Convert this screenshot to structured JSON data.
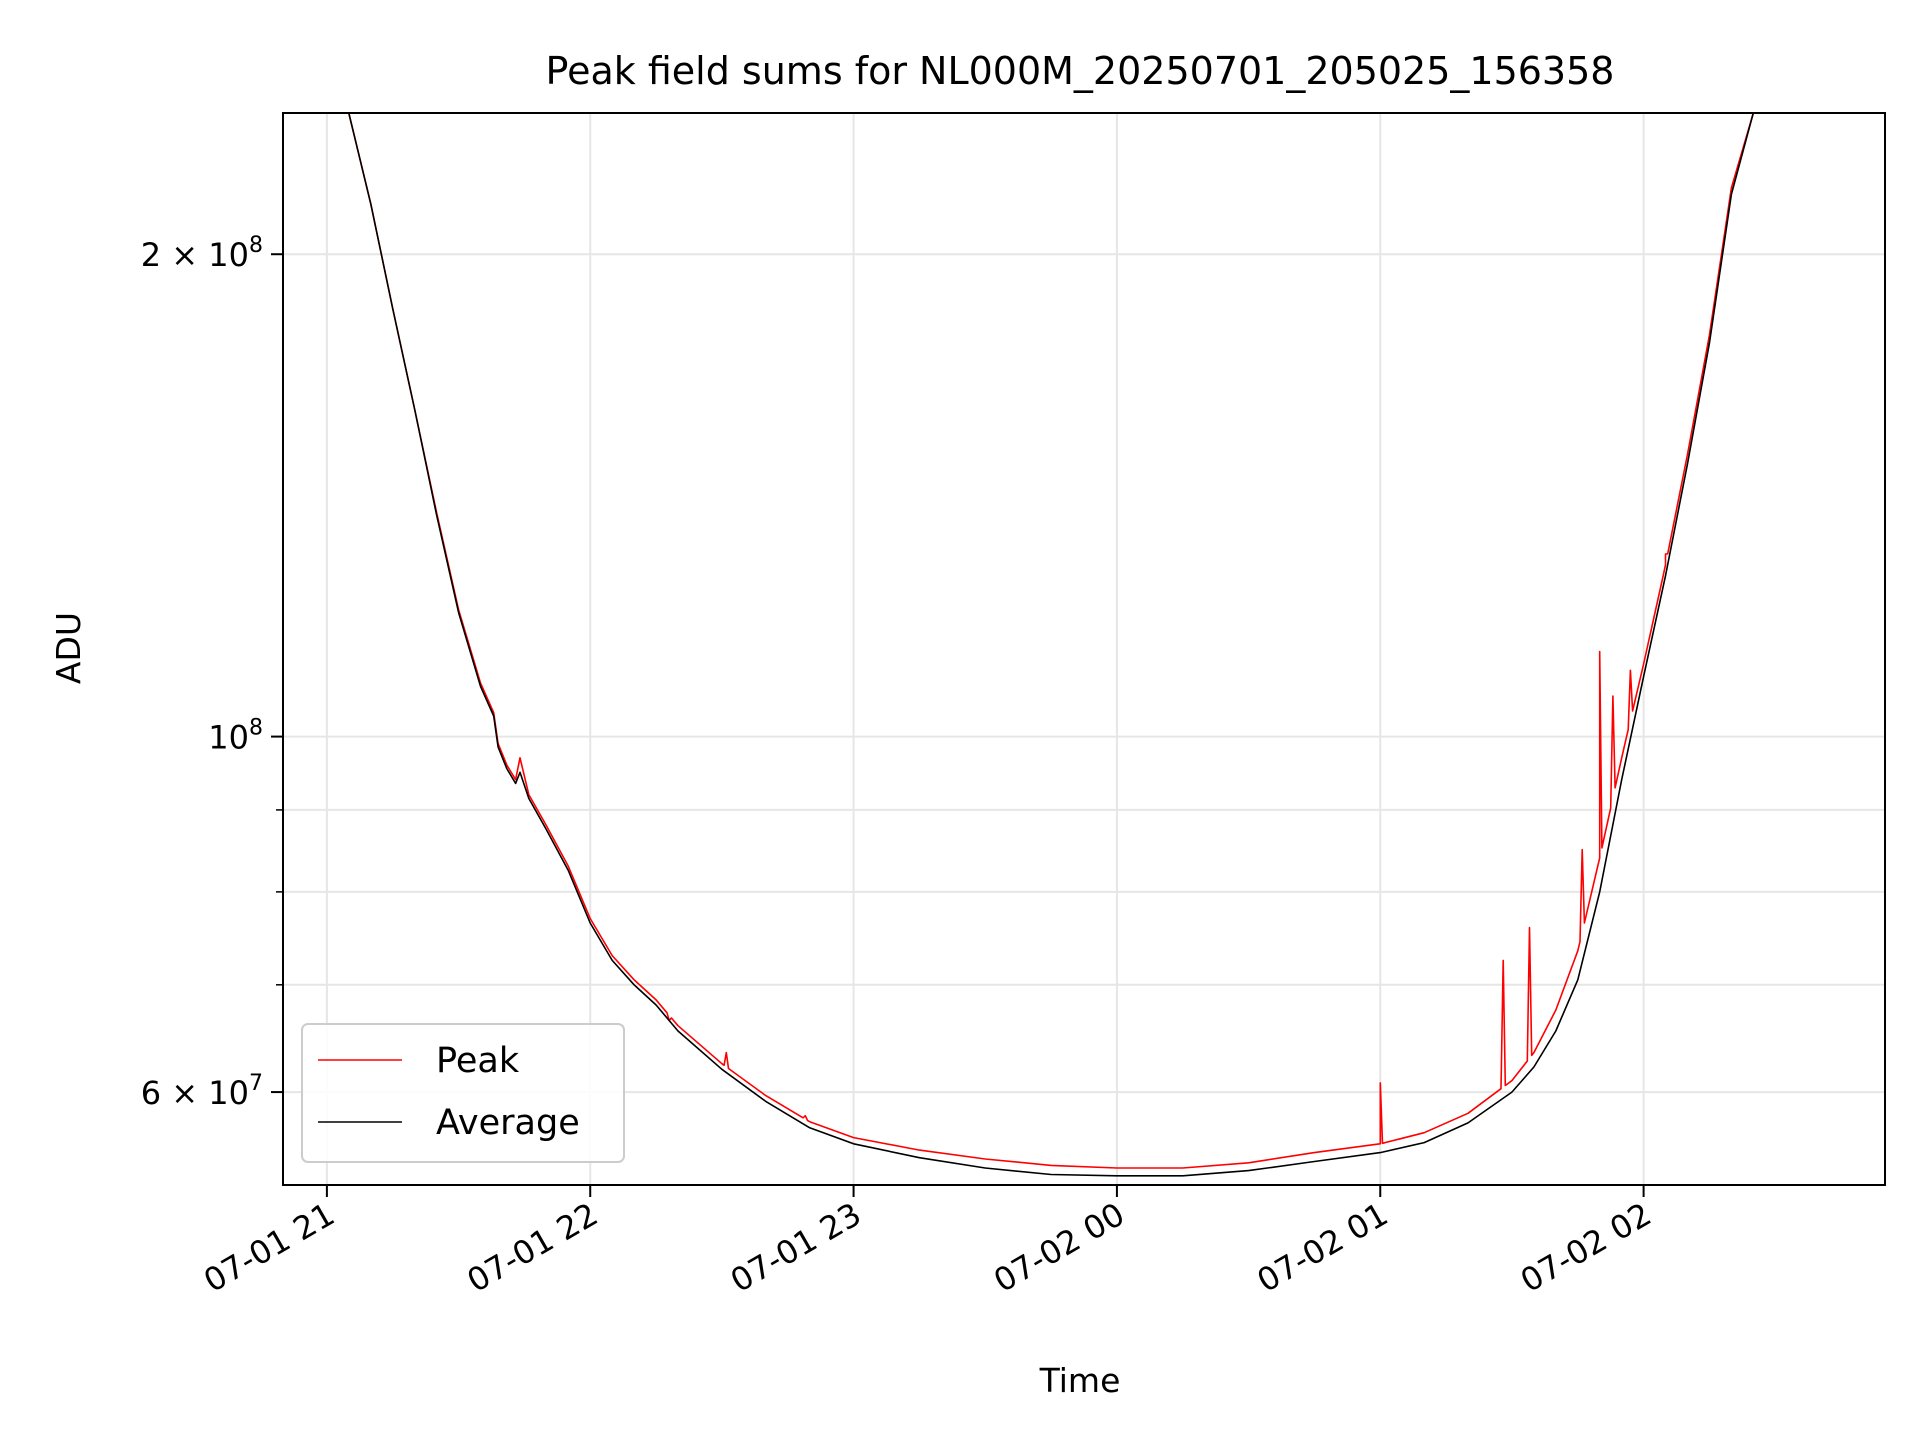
{
  "chart_data": {
    "type": "line",
    "title": "Peak field sums for NL000M_20250701_205025_156358",
    "xlabel": "Time",
    "ylabel": "ADU",
    "yscale": "log",
    "ylim": [
      52500000,
      245000000
    ],
    "xlim": [
      "2025-07-01 20:50",
      "2025-07-02 02:55"
    ],
    "grid": true,
    "legend_position": "lower-left",
    "x_ticks": [
      {
        "t": "2025-07-01 21:00",
        "label": "07-01 21"
      },
      {
        "t": "2025-07-01 22:00",
        "label": "07-01 22"
      },
      {
        "t": "2025-07-01 23:00",
        "label": "07-01 23"
      },
      {
        "t": "2025-07-02 00:00",
        "label": "07-02 00"
      },
      {
        "t": "2025-07-02 01:00",
        "label": "07-02 01"
      },
      {
        "t": "2025-07-02 02:00",
        "label": "07-02 02"
      }
    ],
    "y_ticks": [
      {
        "value": 200000000,
        "base": "2 × 10",
        "exp": "8"
      },
      {
        "value": 100000000,
        "base": "10",
        "exp": "8"
      },
      {
        "value": 60000000,
        "base": "6 × 10",
        "exp": "7"
      }
    ],
    "y_minor_ticks": [
      70000000,
      80000000,
      90000000
    ],
    "series": [
      {
        "name": "Peak",
        "color": "#ff0000",
        "points": [
          [
            "2025-07-01 21:00",
            245000000
          ],
          [
            "2025-07-01 21:05",
            245000000
          ],
          [
            "2025-07-01 21:10",
            215000000
          ],
          [
            "2025-07-01 21:15",
            185000000
          ],
          [
            "2025-07-01 21:20",
            160000000
          ],
          [
            "2025-07-01 21:25",
            138000000
          ],
          [
            "2025-07-01 21:30",
            120000000
          ],
          [
            "2025-07-01 21:35",
            108000000
          ],
          [
            "2025-07-01 21:38",
            103500000
          ],
          [
            "2025-07-01 21:39",
            99000000
          ],
          [
            "2025-07-01 21:41",
            96000000
          ],
          [
            "2025-07-01 21:43",
            94000000
          ],
          [
            "2025-07-01 21:44",
            97000000
          ],
          [
            "2025-07-01 21:46",
            92000000
          ],
          [
            "2025-07-01 21:50",
            88000000
          ],
          [
            "2025-07-01 21:55",
            83000000
          ],
          [
            "2025-07-01 22:00",
            77000000
          ],
          [
            "2025-07-01 22:05",
            73000000
          ],
          [
            "2025-07-01 22:10",
            70500000
          ],
          [
            "2025-07-01 22:15",
            68500000
          ],
          [
            "2025-07-01 22:20",
            66000000
          ],
          [
            "2025-07-01 22:30",
            62500000
          ],
          [
            "2025-07-01 22:40",
            59700000
          ],
          [
            "2025-07-01 22:50",
            57500000
          ],
          [
            "2025-07-01 23:00",
            56200000
          ],
          [
            "2025-07-01 23:15",
            55200000
          ],
          [
            "2025-07-01 23:30",
            54500000
          ],
          [
            "2025-07-01 23:45",
            54000000
          ],
          [
            "2025-07-02 00:00",
            53800000
          ],
          [
            "2025-07-02 00:15",
            53800000
          ],
          [
            "2025-07-02 00:30",
            54200000
          ],
          [
            "2025-07-02 00:45",
            55000000
          ],
          [
            "2025-07-02 01:00",
            55700000
          ],
          [
            "2025-07-02 01:10",
            56600000
          ],
          [
            "2025-07-02 01:20",
            58200000
          ],
          [
            "2025-07-02 01:30",
            61000000
          ],
          [
            "2025-07-02 01:35",
            63500000
          ],
          [
            "2025-07-02 01:40",
            67500000
          ],
          [
            "2025-07-02 01:45",
            73500000
          ],
          [
            "2025-07-02 01:50",
            84000000
          ],
          [
            "2025-07-02 01:55",
            97000000
          ],
          [
            "2025-07-02 02:00",
            111000000
          ],
          [
            "2025-07-02 02:05",
            128000000
          ],
          [
            "2025-07-02 02:10",
            150000000
          ],
          [
            "2025-07-02 02:15",
            178000000
          ],
          [
            "2025-07-02 02:20",
            220000000
          ],
          [
            "2025-07-02 02:25",
            245000000
          ],
          [
            "2025-07-02 02:27",
            245000000
          ]
        ],
        "spikes": [
          [
            "2025-07-01 22:18",
            66500000
          ],
          [
            "2025-07-01 22:31",
            63500000
          ],
          [
            "2025-07-01 22:49",
            58000000
          ],
          [
            "2025-07-02 01:00",
            60800000
          ],
          [
            "2025-07-02 01:28",
            72500000
          ],
          [
            "2025-07-02 01:34",
            76000000
          ],
          [
            "2025-07-02 01:46",
            85000000
          ],
          [
            "2025-07-02 01:50",
            113000000
          ],
          [
            "2025-07-02 01:53",
            106000000
          ],
          [
            "2025-07-02 01:57",
            110000000
          ],
          [
            "2025-07-02 02:05",
            130000000
          ]
        ]
      },
      {
        "name": "Average",
        "color": "#000000",
        "points": [
          [
            "2025-07-01 21:00",
            245000000
          ],
          [
            "2025-07-01 21:05",
            245000000
          ],
          [
            "2025-07-01 21:10",
            215000000
          ],
          [
            "2025-07-01 21:15",
            185000000
          ],
          [
            "2025-07-01 21:20",
            160000000
          ],
          [
            "2025-07-01 21:25",
            137500000
          ],
          [
            "2025-07-01 21:30",
            119500000
          ],
          [
            "2025-07-01 21:35",
            107500000
          ],
          [
            "2025-07-01 21:38",
            103000000
          ],
          [
            "2025-07-01 21:39",
            98500000
          ],
          [
            "2025-07-01 21:41",
            95500000
          ],
          [
            "2025-07-01 21:43",
            93500000
          ],
          [
            "2025-07-01 21:44",
            95000000
          ],
          [
            "2025-07-01 21:46",
            91500000
          ],
          [
            "2025-07-01 21:50",
            87500000
          ],
          [
            "2025-07-01 21:55",
            82500000
          ],
          [
            "2025-07-01 22:00",
            76500000
          ],
          [
            "2025-07-01 22:05",
            72500000
          ],
          [
            "2025-07-01 22:10",
            70000000
          ],
          [
            "2025-07-01 22:15",
            68000000
          ],
          [
            "2025-07-01 22:20",
            65500000
          ],
          [
            "2025-07-01 22:30",
            62000000
          ],
          [
            "2025-07-01 22:40",
            59200000
          ],
          [
            "2025-07-01 22:50",
            57000000
          ],
          [
            "2025-07-01 23:00",
            55700000
          ],
          [
            "2025-07-01 23:15",
            54600000
          ],
          [
            "2025-07-01 23:30",
            53800000
          ],
          [
            "2025-07-01 23:45",
            53300000
          ],
          [
            "2025-07-02 00:00",
            53200000
          ],
          [
            "2025-07-02 00:15",
            53200000
          ],
          [
            "2025-07-02 00:30",
            53600000
          ],
          [
            "2025-07-02 00:45",
            54300000
          ],
          [
            "2025-07-02 01:00",
            55000000
          ],
          [
            "2025-07-02 01:10",
            55800000
          ],
          [
            "2025-07-02 01:20",
            57400000
          ],
          [
            "2025-07-02 01:30",
            60000000
          ],
          [
            "2025-07-02 01:35",
            62200000
          ],
          [
            "2025-07-02 01:40",
            65500000
          ],
          [
            "2025-07-02 01:45",
            70500000
          ],
          [
            "2025-07-02 01:50",
            80000000
          ],
          [
            "2025-07-02 01:55",
            94000000
          ],
          [
            "2025-07-02 02:00",
            109000000
          ],
          [
            "2025-07-02 02:05",
            126000000
          ],
          [
            "2025-07-02 02:10",
            148000000
          ],
          [
            "2025-07-02 02:15",
            176000000
          ],
          [
            "2025-07-02 02:20",
            218000000
          ],
          [
            "2025-07-02 02:25",
            245000000
          ],
          [
            "2025-07-02 02:27",
            245000000
          ]
        ]
      }
    ]
  }
}
